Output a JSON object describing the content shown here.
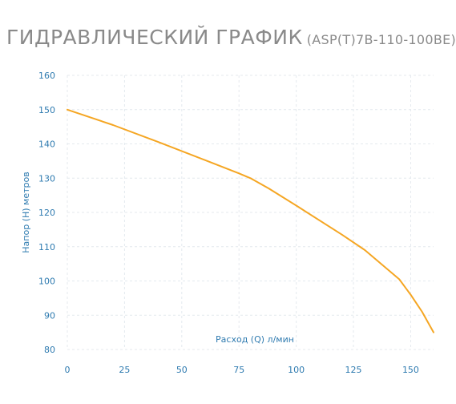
{
  "header": {
    "title": "ГИДРАВЛИЧЕСКИЙ ГРАФИК",
    "model": "(ASP(T)7B-110-100BE)"
  },
  "colors": {
    "curve": "#f5a623",
    "axis_text": "#2f7bb0",
    "grid": "#e4e9ee",
    "title": "#8a8a8a"
  },
  "chart_data": {
    "type": "line",
    "xlabel": "Расход (Q) л/мин",
    "ylabel": "Напор (H) метров",
    "xlim": [
      0,
      160
    ],
    "ylim": [
      80,
      160
    ],
    "x_ticks": [
      0,
      25,
      50,
      75,
      100,
      125,
      150
    ],
    "y_ticks": [
      80,
      90,
      100,
      110,
      120,
      130,
      140,
      150,
      160
    ],
    "grid": "dashed",
    "series": [
      {
        "x": [
          0,
          20,
          40,
          60,
          75,
          80,
          88,
          100,
          120,
          130,
          145,
          150,
          155,
          160
        ],
        "y": [
          150,
          145.5,
          140.5,
          135.3,
          131.4,
          130,
          127,
          122,
          113.5,
          109,
          100.5,
          96,
          91,
          85
        ]
      }
    ]
  }
}
